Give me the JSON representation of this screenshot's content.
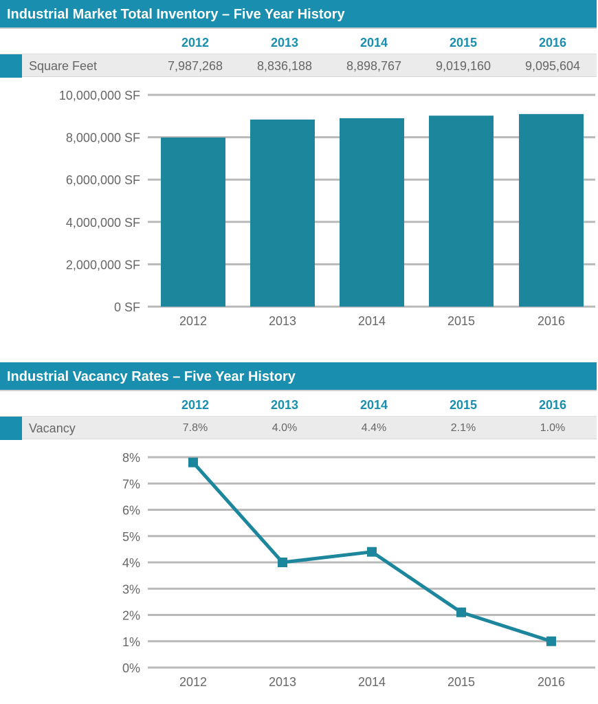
{
  "colors": {
    "accent": "#1a8eae",
    "bar": "#1c869d",
    "grid": "#b9b9b9"
  },
  "inventory": {
    "title": "Industrial Market Total Inventory – Five Year History",
    "years": [
      "2012",
      "2013",
      "2014",
      "2015",
      "2016"
    ],
    "row_label": "Square Feet",
    "row_values": [
      "7,987,268",
      "8,836,188",
      "8,898,767",
      "9,019,160",
      "9,095,604"
    ]
  },
  "vacancy": {
    "title": "Industrial Vacancy Rates – Five Year History",
    "years": [
      "2012",
      "2013",
      "2014",
      "2015",
      "2016"
    ],
    "row_label": "Vacancy",
    "row_values": [
      "7.8%",
      "4.0%",
      "4.4%",
      "2.1%",
      "1.0%"
    ]
  },
  "chart_data": [
    {
      "type": "bar",
      "categories": [
        "2012",
        "2013",
        "2014",
        "2015",
        "2016"
      ],
      "values": [
        7987268,
        8836188,
        8898767,
        9019160,
        9095604
      ],
      "ylim": [
        0,
        10000000
      ],
      "yticks": [
        0,
        2000000,
        4000000,
        6000000,
        8000000,
        10000000
      ],
      "ytick_labels": [
        "0 SF",
        "2,000,000 SF",
        "4,000,000 SF",
        "6,000,000 SF",
        "8,000,000 SF",
        "10,000,000 SF"
      ],
      "grid": true,
      "legend": "none"
    },
    {
      "type": "line",
      "categories": [
        "2012",
        "2013",
        "2014",
        "2015",
        "2016"
      ],
      "values": [
        7.8,
        4.0,
        4.4,
        2.1,
        1.0
      ],
      "ylim": [
        0,
        8
      ],
      "yticks": [
        0,
        1,
        2,
        3,
        4,
        5,
        6,
        7,
        8
      ],
      "ytick_labels": [
        "0%",
        "1%",
        "2%",
        "3%",
        "4%",
        "5%",
        "6%",
        "7%",
        "8%"
      ],
      "marker": "square",
      "grid": true,
      "legend": "none"
    }
  ]
}
